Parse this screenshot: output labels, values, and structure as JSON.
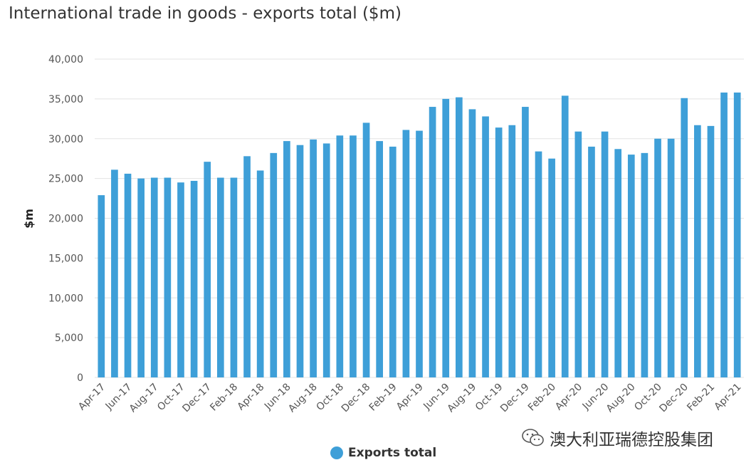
{
  "chart_data": {
    "type": "bar",
    "title": "International trade in goods - exports total ($m)",
    "ylabel": "$m",
    "xlabel": "",
    "ylim": [
      0,
      40000
    ],
    "yticks": [
      0,
      5000,
      10000,
      15000,
      20000,
      25000,
      30000,
      35000,
      40000
    ],
    "ytick_labels": [
      "0",
      "5,000",
      "10,000",
      "15,000",
      "20,000",
      "25,000",
      "30,000",
      "35,000",
      "40,000"
    ],
    "grid": true,
    "legend_position": "bottom",
    "bar_color": "#3e9fd8",
    "categories": [
      "Apr-17",
      "May-17",
      "Jun-17",
      "Jul-17",
      "Aug-17",
      "Sep-17",
      "Oct-17",
      "Nov-17",
      "Dec-17",
      "Jan-18",
      "Feb-18",
      "Mar-18",
      "Apr-18",
      "May-18",
      "Jun-18",
      "Jul-18",
      "Aug-18",
      "Sep-18",
      "Oct-18",
      "Nov-18",
      "Dec-18",
      "Jan-19",
      "Feb-19",
      "Mar-19",
      "Apr-19",
      "May-19",
      "Jun-19",
      "Jul-19",
      "Aug-19",
      "Sep-19",
      "Oct-19",
      "Nov-19",
      "Dec-19",
      "Jan-20",
      "Feb-20",
      "Mar-20",
      "Apr-20",
      "May-20",
      "Jun-20",
      "Jul-20",
      "Aug-20",
      "Sep-20",
      "Oct-20",
      "Nov-20",
      "Dec-20",
      "Jan-21",
      "Feb-21",
      "Mar-21",
      "Apr-21"
    ],
    "xtick_labels": [
      "Apr-17",
      "Jun-17",
      "Aug-17",
      "Oct-17",
      "Dec-17",
      "Feb-18",
      "Apr-18",
      "Jun-18",
      "Aug-18",
      "Oct-18",
      "Dec-18",
      "Feb-19",
      "Apr-19",
      "Jun-19",
      "Aug-19",
      "Oct-19",
      "Dec-19",
      "Feb-20",
      "Apr-20",
      "Jun-20",
      "Aug-20",
      "Oct-20",
      "Dec-20",
      "Feb-21",
      "Apr-21"
    ],
    "series": [
      {
        "name": "Exports total",
        "values": [
          22900,
          26100,
          25600,
          25000,
          25100,
          25100,
          24500,
          24700,
          27100,
          25100,
          25100,
          27800,
          26000,
          28200,
          29700,
          29200,
          29900,
          29400,
          30400,
          30400,
          32000,
          29700,
          29000,
          31100,
          31000,
          34000,
          35000,
          35200,
          33700,
          32800,
          31400,
          31700,
          34000,
          28400,
          27500,
          35400,
          30900,
          29000,
          30900,
          28700,
          28000,
          28200,
          30000,
          30000,
          35100,
          31700,
          31600,
          35800,
          35800
        ]
      }
    ]
  },
  "watermark": {
    "icon": "wechat-icon",
    "text": "澳大利亚瑞德控股集团"
  }
}
